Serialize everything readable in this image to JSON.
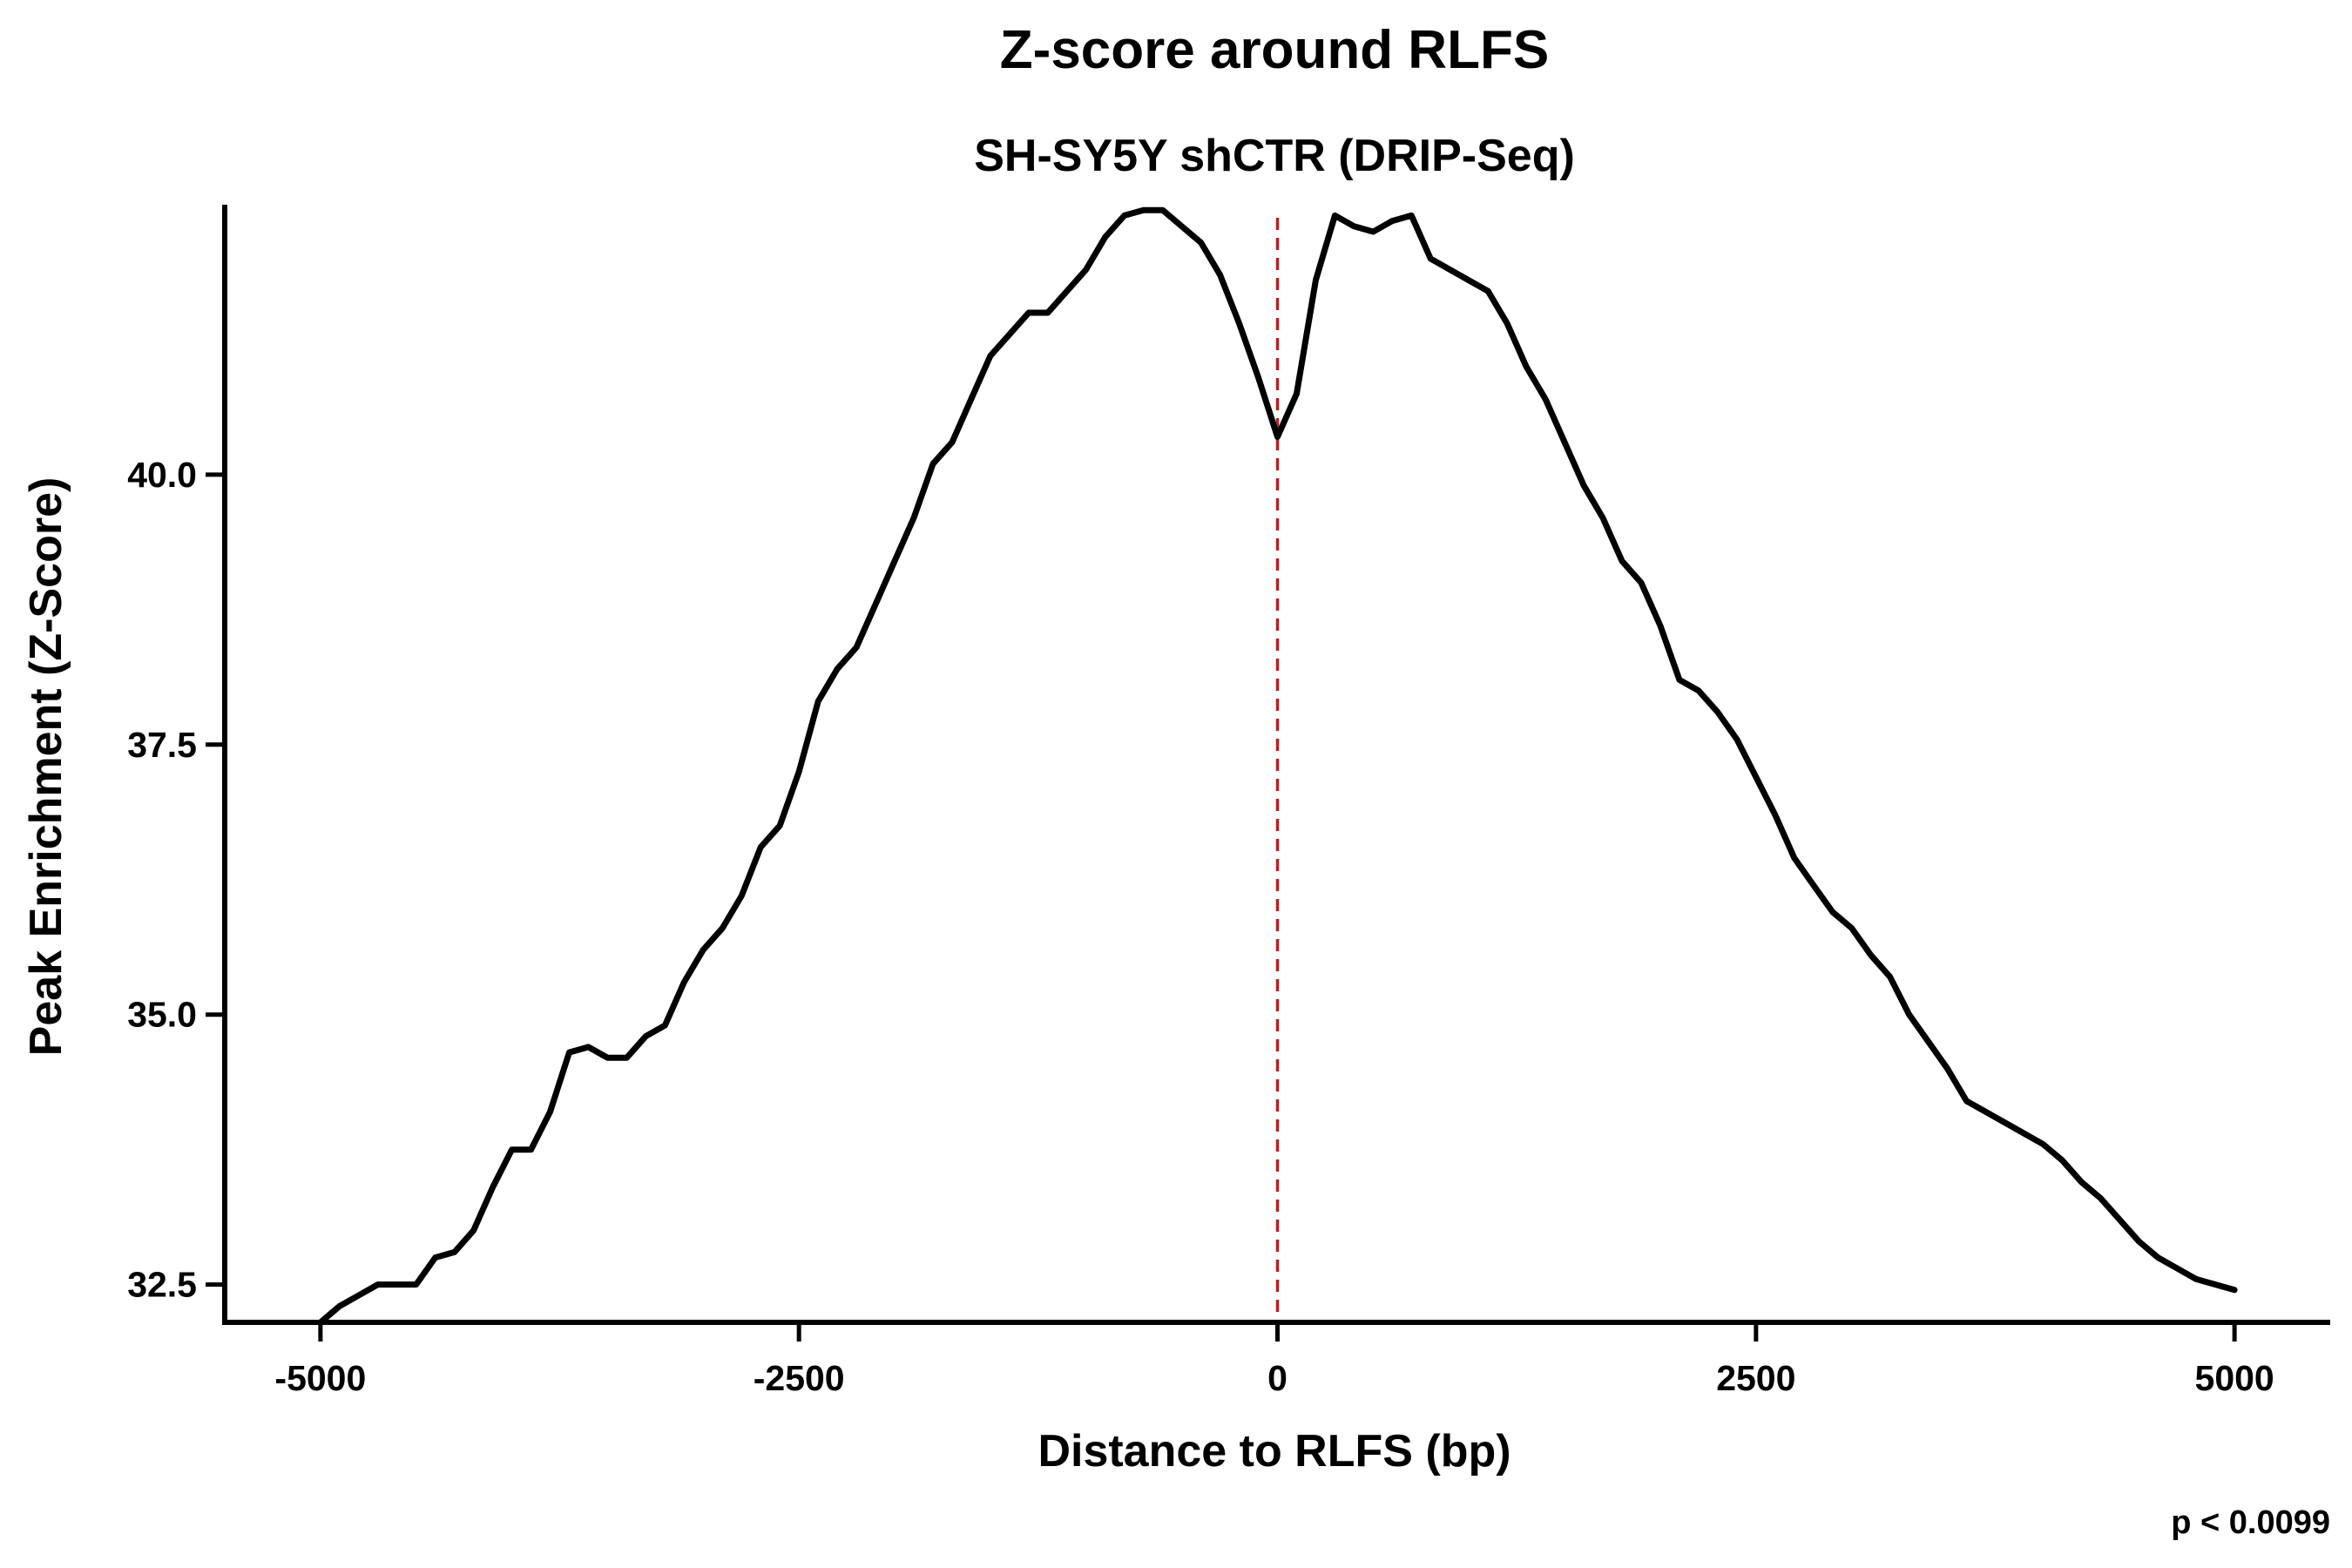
{
  "chart_data": {
    "type": "line",
    "title": "Z-score around RLFS",
    "subtitle": "SH-SY5Y shCTR (DRIP-Seq)",
    "xlabel": "Distance to RLFS (bp)",
    "ylabel": "Peak Enrichment (Z-Score)",
    "annotation": "p < 0.0099",
    "xlim": [
      -5500,
      5500
    ],
    "ylim": [
      32.15,
      42.5
    ],
    "x_ticks": [
      -5000,
      -2500,
      0,
      2500,
      5000
    ],
    "x_tick_labels": [
      "-5000",
      "-2500",
      "0",
      "2500",
      "5000"
    ],
    "y_ticks": [
      32.5,
      35.0,
      37.5,
      40.0
    ],
    "y_tick_labels": [
      "32.5",
      "35.0",
      "37.5",
      "40.0"
    ],
    "reference_line": {
      "x": 0,
      "style": "dashed",
      "color": "#b22222"
    },
    "grid": false,
    "line_color": "#000000",
    "series": [
      {
        "x": [
          -5000,
          -4900,
          -4800,
          -4700,
          -4600,
          -4500,
          -4400,
          -4300,
          -4200,
          -4100,
          -4000,
          -3900,
          -3800,
          -3700,
          -3600,
          -3500,
          -3400,
          -3300,
          -3200,
          -3100,
          -3000,
          -2900,
          -2800,
          -2700,
          -2600,
          -2500,
          -2400,
          -2300,
          -2200,
          -2100,
          -2000,
          -1900,
          -1800,
          -1700,
          -1600,
          -1500,
          -1400,
          -1300,
          -1200,
          -1100,
          -1000,
          -900,
          -800,
          -700,
          -600,
          -500,
          -400,
          -300,
          -200,
          -100,
          0,
          100,
          200,
          300,
          400,
          500,
          600,
          700,
          800,
          900,
          1000,
          1100,
          1200,
          1300,
          1400,
          1500,
          1600,
          1700,
          1800,
          1900,
          2000,
          2100,
          2200,
          2300,
          2400,
          2500,
          2600,
          2700,
          2800,
          2900,
          3000,
          3100,
          3200,
          3300,
          3400,
          3500,
          3600,
          3700,
          3800,
          3900,
          4000,
          4100,
          4200,
          4300,
          4400,
          4500,
          4600,
          4700,
          4800,
          4900,
          5000
        ],
        "values": [
          32.15,
          32.3,
          32.4,
          32.5,
          32.5,
          32.5,
          32.75,
          32.8,
          33.0,
          33.4,
          33.75,
          33.75,
          34.1,
          34.65,
          34.7,
          34.6,
          34.6,
          34.8,
          34.9,
          35.3,
          35.6,
          35.8,
          36.1,
          36.55,
          36.75,
          37.25,
          37.9,
          38.2,
          38.4,
          38.8,
          39.2,
          39.6,
          40.1,
          40.3,
          40.7,
          41.1,
          41.3,
          41.5,
          41.5,
          41.7,
          41.9,
          42.2,
          42.4,
          42.45,
          42.45,
          42.3,
          42.15,
          41.85,
          41.4,
          40.9,
          40.35,
          40.75,
          41.8,
          42.4,
          42.3,
          42.25,
          42.35,
          42.4,
          42.0,
          41.9,
          41.8,
          41.7,
          41.4,
          41.0,
          40.7,
          40.3,
          39.9,
          39.6,
          39.2,
          39.0,
          38.6,
          38.1,
          38.0,
          37.8,
          37.55,
          37.2,
          36.85,
          36.45,
          36.2,
          35.95,
          35.8,
          35.55,
          35.35,
          35.0,
          34.75,
          34.5,
          34.2,
          34.1,
          34.0,
          33.9,
          33.8,
          33.65,
          33.45,
          33.3,
          33.1,
          32.9,
          32.75,
          32.65,
          32.55,
          32.5,
          32.45
        ]
      }
    ]
  }
}
